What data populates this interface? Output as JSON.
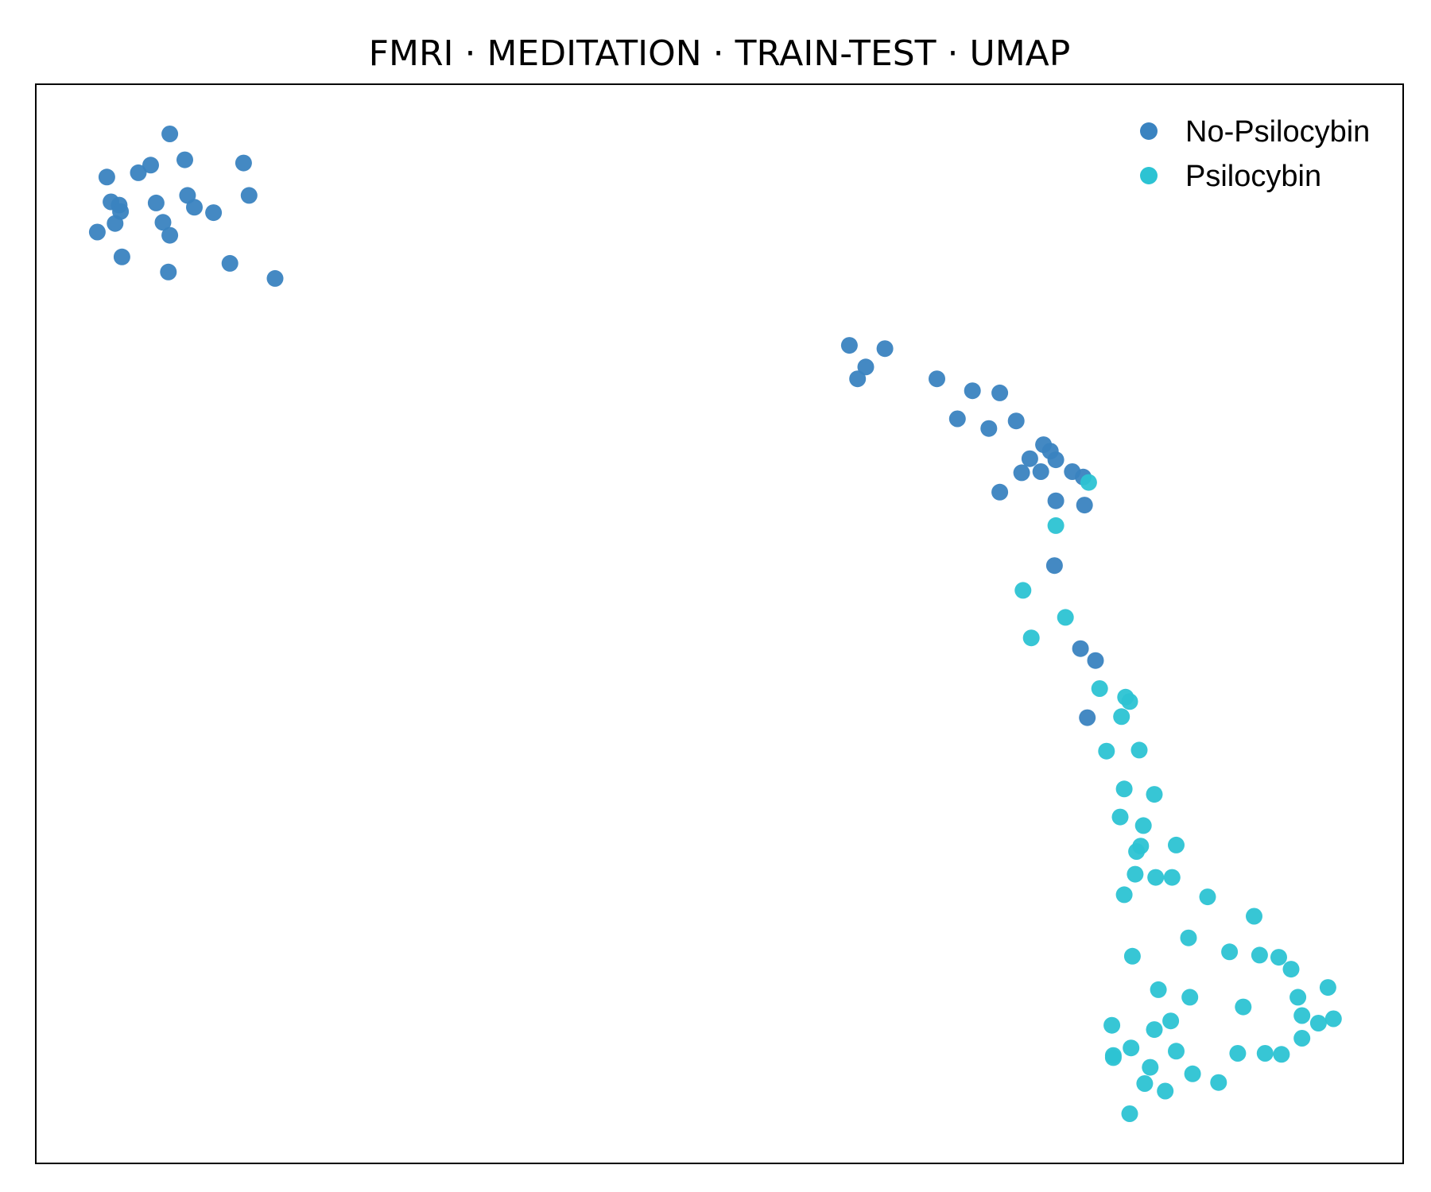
{
  "chart_data": {
    "type": "scatter",
    "title": "FMRI · MEDITATION · TRAIN-TEST · UMAP",
    "xlabel": "",
    "ylabel": "",
    "xlim": [
      0,
      100
    ],
    "ylim": [
      0,
      100
    ],
    "axes_ticks": false,
    "grid": false,
    "legend_position": "top-right",
    "series": [
      {
        "name": "No-Psilocybin",
        "color": "#3a83c0",
        "x": [
          9.8,
          10.9,
          8.4,
          7.5,
          5.2,
          5.5,
          6.1,
          8.8,
          11.1,
          11.6,
          15.2,
          15.6,
          13.0,
          6.2,
          9.3,
          4.5,
          5.8,
          9.8,
          14.2,
          6.3,
          9.7,
          17.5,
          59.5,
          62.1,
          60.7,
          60.1,
          65.9,
          68.5,
          70.5,
          67.4,
          69.7,
          71.7,
          73.7,
          74.2,
          72.7,
          74.6,
          76.6,
          73.5,
          72.1,
          75.8,
          70.5,
          74.6,
          76.7,
          74.5,
          76.4,
          77.5,
          76.9
        ],
        "y": [
          95.4,
          93.0,
          92.5,
          91.8,
          91.4,
          89.1,
          88.8,
          89.0,
          89.7,
          88.6,
          92.7,
          89.7,
          88.1,
          88.2,
          87.2,
          86.3,
          87.1,
          86.0,
          83.4,
          84.0,
          82.6,
          82.0,
          75.8,
          75.5,
          73.8,
          72.7,
          72.7,
          71.6,
          71.4,
          69.0,
          68.1,
          68.8,
          66.6,
          66.0,
          65.3,
          65.2,
          63.6,
          64.1,
          64.0,
          64.1,
          62.2,
          61.4,
          61.0,
          55.4,
          47.7,
          46.6,
          41.3
        ]
      },
      {
        "name": "Psilocybin",
        "color": "#2cc3d3",
        "x": [
          77.0,
          74.6,
          72.2,
          75.3,
          72.8,
          77.8,
          79.7,
          80.0,
          79.4,
          80.7,
          78.3,
          79.6,
          81.8,
          79.3,
          81.0,
          83.4,
          80.8,
          80.5,
          80.4,
          83.1,
          81.9,
          85.7,
          89.1,
          79.6,
          84.3,
          80.2,
          87.3,
          89.5,
          90.9,
          91.8,
          92.3,
          82.1,
          94.5,
          84.4,
          88.3,
          92.6,
          94.9,
          83.0,
          78.7,
          93.8,
          81.8,
          92.6,
          80.1,
          83.4,
          89.9,
          87.9,
          91.1,
          78.8,
          78.8,
          81.5,
          84.6,
          86.5,
          81.1,
          82.6,
          80.0
        ],
        "y": [
          63.1,
          59.1,
          53.1,
          50.6,
          48.7,
          44.0,
          43.2,
          42.8,
          41.4,
          38.3,
          38.2,
          34.7,
          34.2,
          32.1,
          31.3,
          29.5,
          29.4,
          28.9,
          26.8,
          26.5,
          26.5,
          24.7,
          22.9,
          24.9,
          20.9,
          19.2,
          19.6,
          19.3,
          19.1,
          18.0,
          15.4,
          16.1,
          16.3,
          15.4,
          14.5,
          13.7,
          13.4,
          13.2,
          12.8,
          13.0,
          12.4,
          11.6,
          10.7,
          10.4,
          10.2,
          10.2,
          10.1,
          9.8,
          10.0,
          8.9,
          8.3,
          7.5,
          7.4,
          6.7,
          4.6
        ]
      }
    ]
  }
}
